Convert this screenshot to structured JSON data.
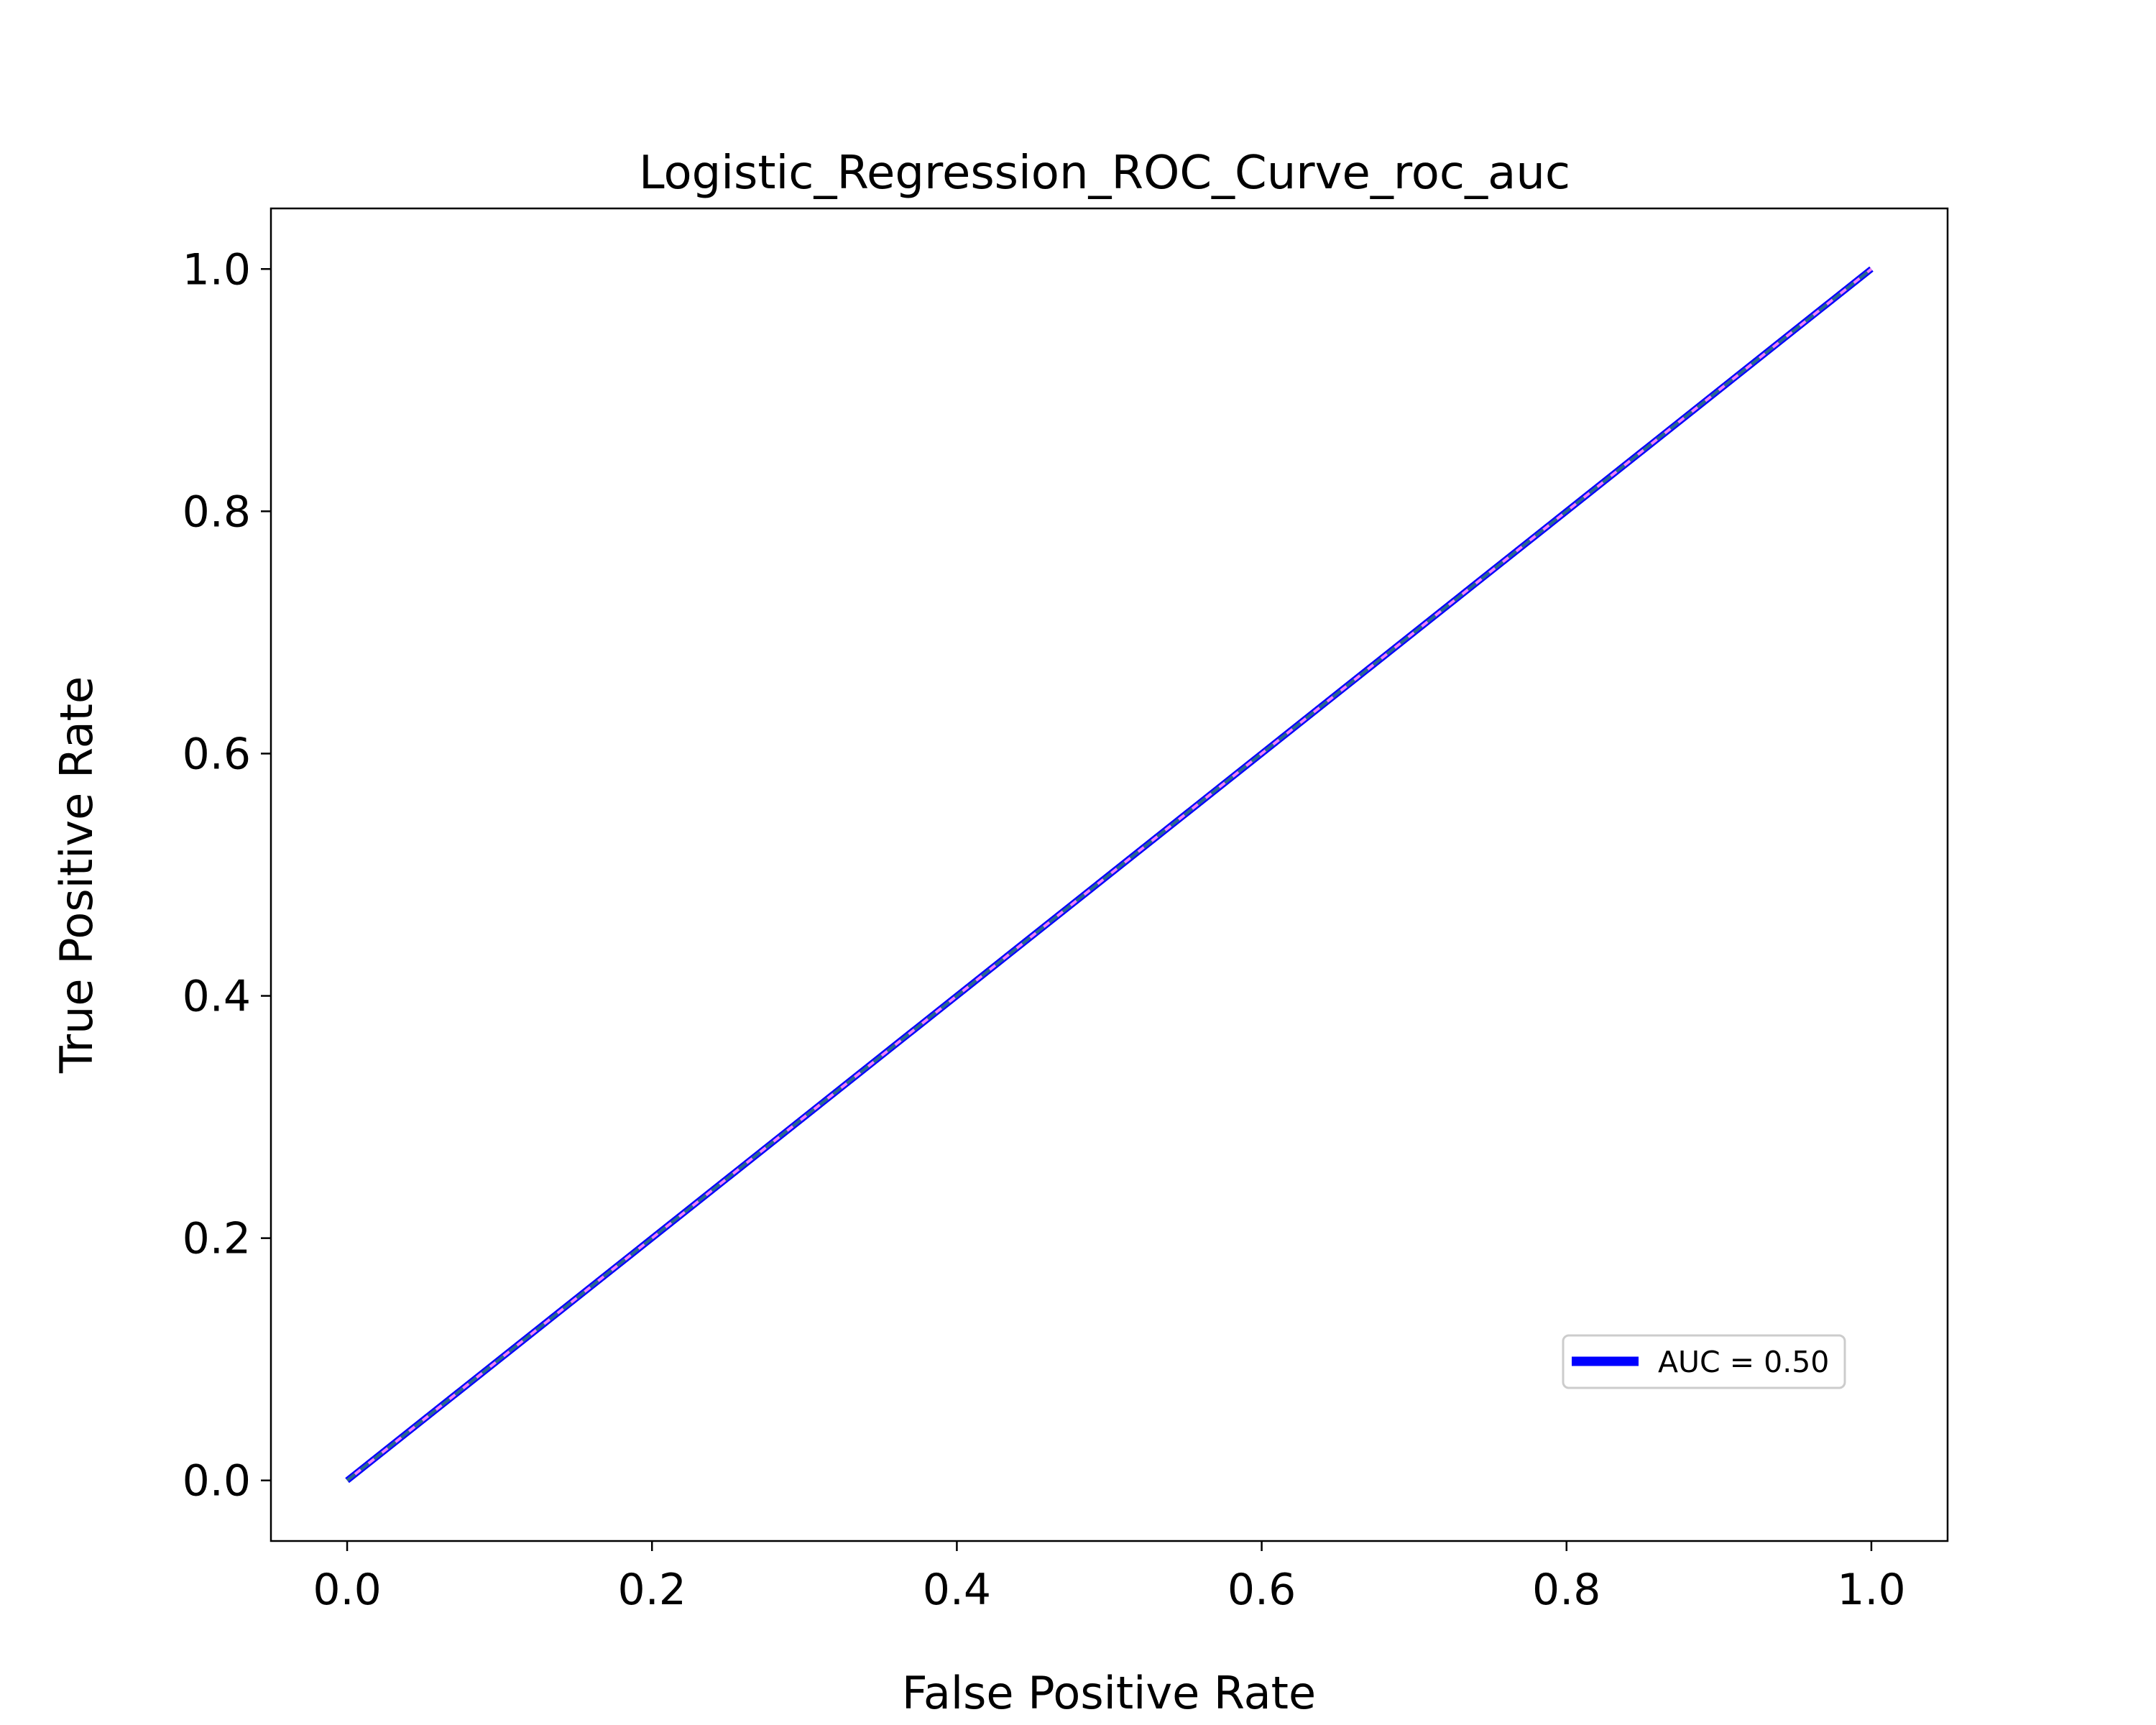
{
  "chart_data": {
    "type": "line",
    "title": "Logistic_Regression_ROC_Curve_roc_auc",
    "xlabel": "False Positive Rate",
    "ylabel": "True Positive Rate",
    "xlim": [
      -0.05,
      1.05
    ],
    "ylim": [
      -0.05,
      1.05
    ],
    "xticks": [
      "0.0",
      "0.2",
      "0.4",
      "0.6",
      "0.8",
      "1.0"
    ],
    "yticks": [
      "0.0",
      "0.2",
      "0.4",
      "0.6",
      "0.8",
      "1.0"
    ],
    "grid": false,
    "legend_position": "lower-right",
    "series": [
      {
        "name": "AUC = 0.50",
        "x": [
          0.0,
          1.0
        ],
        "y": [
          0.0,
          1.0
        ],
        "color": "#0000ff",
        "style": "solid"
      },
      {
        "x": [
          0.0,
          1.0
        ],
        "y": [
          0.0,
          1.0
        ],
        "color": "#ee82ee",
        "style": "solid"
      },
      {
        "x": [
          0.0,
          1.0
        ],
        "y": [
          0.0,
          1.0
        ],
        "color": "#2a6b8a",
        "style": "dashed"
      }
    ]
  }
}
